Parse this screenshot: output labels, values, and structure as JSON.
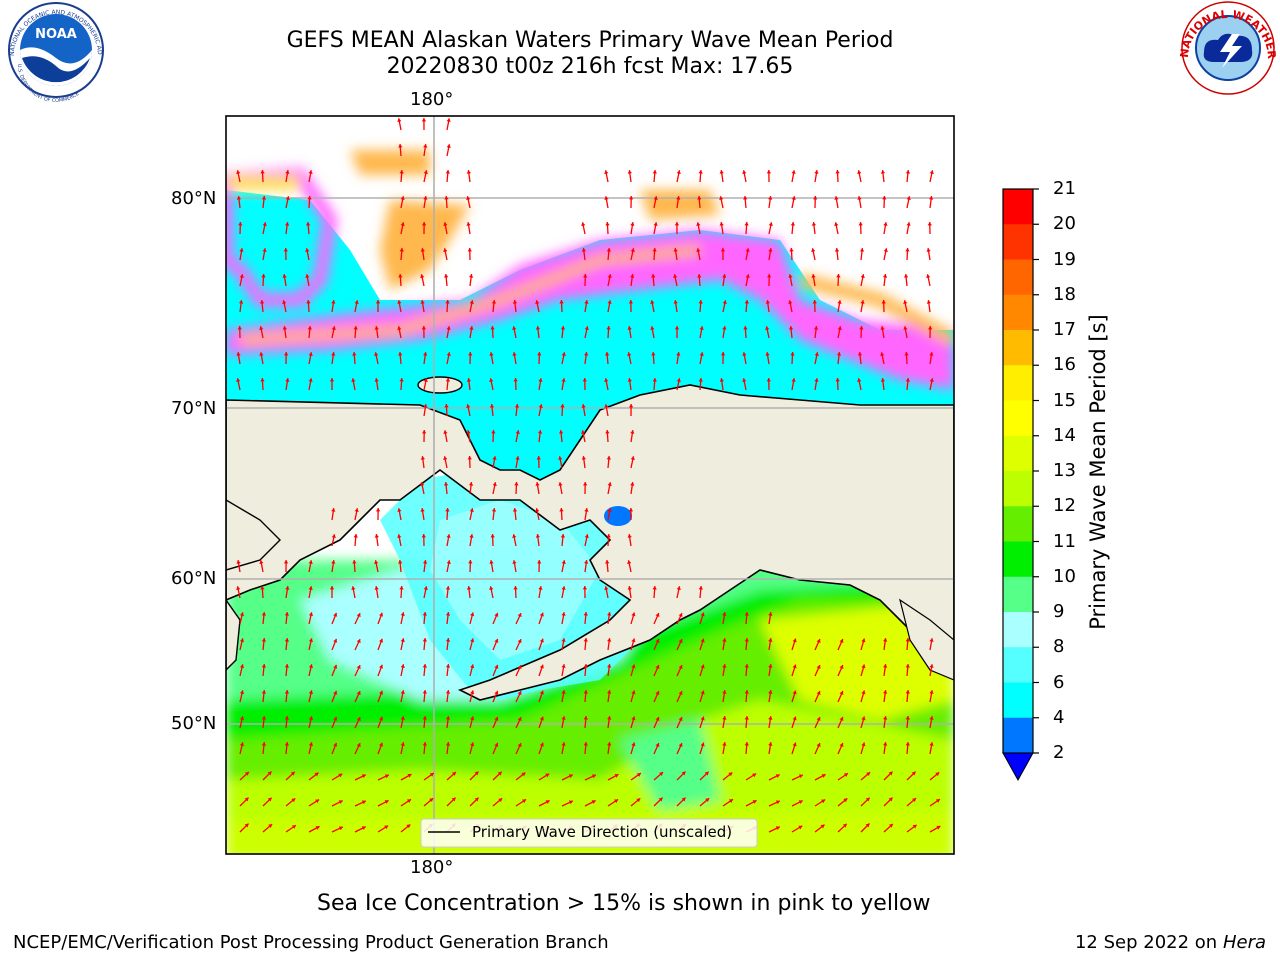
{
  "title": {
    "line1": "GEFS MEAN Alaskan Waters Primary Wave Mean Period",
    "line2": "20220830 t00z 216h fcst   Max: 17.65"
  },
  "logos": {
    "noaa_text": "NOAA",
    "noaa_ring_top": "NATIONAL OCEANIC AND ATMOSPHERIC ADMINISTRATION",
    "noaa_ring_bottom": "U.S. DEPARTMENT OF COMMERCE",
    "nws_ring": "NATIONAL WEATHER SERVICE"
  },
  "map": {
    "lon_top": "180°",
    "lon_bottom": "180°",
    "lat_labels": [
      "80°N",
      "70°N",
      "60°N",
      "50°N"
    ],
    "legend": "Primary Wave Direction (unscaled)",
    "colors": {
      "land": "#efedde",
      "ice_pink": "#ff66ff",
      "ice_orange": "#ffb84d",
      "ice_yellow": "#ffdd55",
      "arrow": "#ff0000",
      "grid": "#b0b0b0"
    }
  },
  "colorbar": {
    "label": "Primary Wave Mean Period [s]",
    "ticks": [
      "2",
      "4",
      "6",
      "8",
      "9",
      "10",
      "11",
      "12",
      "13",
      "14",
      "15",
      "16",
      "17",
      "18",
      "19",
      "20",
      "21"
    ],
    "colors": [
      "#0077ff",
      "#00ffff",
      "#55ffff",
      "#aaffff",
      "#55ff88",
      "#00ee00",
      "#66ee00",
      "#bbff00",
      "#ddff00",
      "#ffff00",
      "#ffee00",
      "#ffbb00",
      "#ff8800",
      "#ff6600",
      "#ff3300",
      "#ff0000"
    ],
    "under_color": "#0000ff"
  },
  "caption": "Sea Ice Concentration > 15% is shown in pink to yellow",
  "footer": {
    "left": "NCEP/EMC/Verification Post Processing Product Generation Branch",
    "right_date": "12 Sep 2022 on",
    "right_host": "Hera"
  }
}
